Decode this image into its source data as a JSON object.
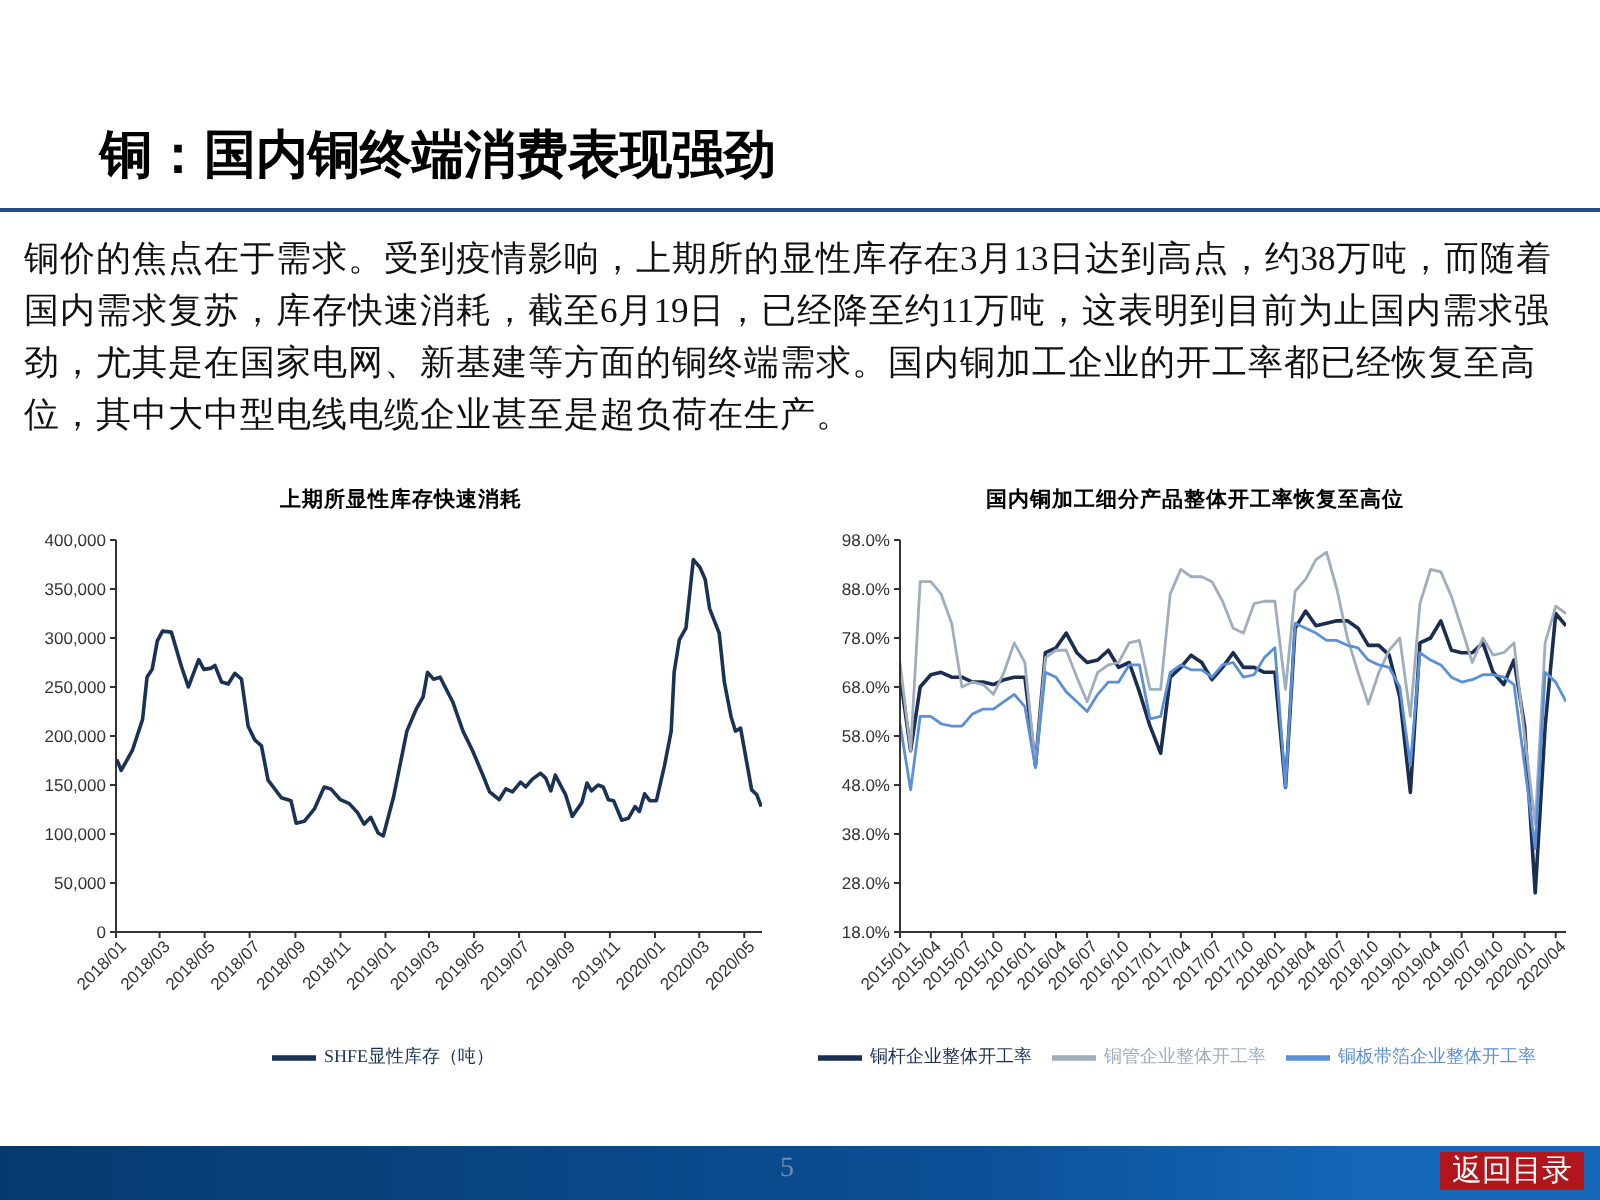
{
  "chart_data": [
    {
      "type": "other",
      "title": "铜：国内铜终端消费表现强劲",
      "annotations": [
        "铜价的焦点在于需求。受到疫情影响，上期所的显性库存在3月13日达到高点，约38万吨，而随着国内需求复苏，库存快速消耗，截至6月19日，已经降至约11万吨，这表明到目前为止国内需求强劲，尤其是在国家电网、新基建等方面的铜终端需求。国内铜加工企业的开工率都已经恢复至高位，其中大中型电线电缆企业甚至是超负荷在生产。",
        "5",
        "返回目录"
      ]
    },
    {
      "type": "line",
      "title": "上期所显性库存快速消耗",
      "legend": "bottom",
      "xlim": [
        "2018-01-01",
        "2020-05-25"
      ],
      "xticks": [
        {
          "value": "2018-01",
          "label": "2018/01"
        },
        {
          "value": "2018-03",
          "label": "2018/03"
        },
        {
          "value": "2018-05",
          "label": "2018/05"
        },
        {
          "value": "2018-07",
          "label": "2018/07"
        },
        {
          "value": "2018-09",
          "label": "2018/09"
        },
        {
          "value": "2018-11",
          "label": "2018/11"
        },
        {
          "value": "2019-01",
          "label": "2019/01"
        },
        {
          "value": "2019-03",
          "label": "2019/03"
        },
        {
          "value": "2019-05",
          "label": "2019/05"
        },
        {
          "value": "2019-07",
          "label": "2019/07"
        },
        {
          "value": "2019-09",
          "label": "2019/09"
        },
        {
          "value": "2019-11",
          "label": "2019/11"
        },
        {
          "value": "2020-01",
          "label": "2020/01"
        },
        {
          "value": "2020-03",
          "label": "2020/03"
        },
        {
          "value": "2020-05",
          "label": "2020/05"
        }
      ],
      "ylim": [
        0,
        400000
      ],
      "yticks": [
        0,
        {
          "value": 50000,
          "label": "50,000"
        },
        {
          "value": 100000,
          "label": "100,000"
        },
        {
          "value": 150000,
          "label": "150,000"
        },
        {
          "value": 200000,
          "label": "200,000"
        },
        {
          "value": 250000,
          "label": "250,000"
        },
        {
          "value": 300000,
          "label": "300,000"
        },
        {
          "value": 350000,
          "label": "350,000"
        },
        {
          "value": 400000,
          "label": "400,000"
        }
      ],
      "series": [
        {
          "name": "SHFE显性库存（吨）",
          "color": "#1a3355",
          "x": [
            "2018-01-02",
            "2018-01-08",
            "2018-01-23",
            "2018-02-06",
            "2018-02-12",
            "2018-02-19",
            "2018-02-26",
            "2018-03-05",
            "2018-03-17",
            "2018-03-31",
            "2018-04-09",
            "2018-04-23",
            "2018-04-30",
            "2018-05-09",
            "2018-05-15",
            "2018-05-24",
            "2018-06-02",
            "2018-06-11",
            "2018-06-20",
            "2018-06-29",
            "2018-07-08",
            "2018-07-17",
            "2018-07-26",
            "2018-08-13",
            "2018-08-26",
            "2018-09-02",
            "2018-09-13",
            "2018-09-27",
            "2018-10-10",
            "2018-10-19",
            "2018-11-01",
            "2018-11-13",
            "2018-11-24",
            "2018-12-03",
            "2018-12-12",
            "2018-12-22",
            "2018-12-29",
            "2019-01-12",
            "2019-01-30",
            "2019-02-12",
            "2019-02-21",
            "2019-02-27",
            "2019-03-07",
            "2019-03-16",
            "2019-04-02",
            "2019-04-16",
            "2019-04-29",
            "2019-05-13",
            "2019-05-22",
            "2019-06-04",
            "2019-06-13",
            "2019-06-22",
            "2019-07-03",
            "2019-07-10",
            "2019-07-19",
            "2019-07-30",
            "2019-08-06",
            "2019-08-13",
            "2019-08-19",
            "2019-09-02",
            "2019-09-11",
            "2019-09-24",
            "2019-10-01",
            "2019-10-07",
            "2019-10-16",
            "2019-10-23",
            "2019-10-30",
            "2019-11-06",
            "2019-11-17",
            "2019-11-26",
            "2019-12-05",
            "2019-12-11",
            "2019-12-18",
            "2019-12-25",
            "2020-01-03",
            "2020-01-14",
            "2020-01-23",
            "2020-01-27",
            "2020-02-03",
            "2020-02-12",
            "2020-02-22",
            "2020-03-02",
            "2020-03-09",
            "2020-03-15",
            "2020-03-28",
            "2020-04-04",
            "2020-04-13",
            "2020-04-19",
            "2020-04-26",
            "2020-05-11",
            "2020-05-18",
            "2020-05-24"
          ],
          "values": [
            176000,
            165000,
            185000,
            217000,
            260000,
            268000,
            297000,
            307000,
            306000,
            270000,
            250000,
            278000,
            268000,
            269000,
            272000,
            255000,
            253000,
            264000,
            258000,
            210000,
            196000,
            190000,
            155000,
            137000,
            134000,
            111000,
            113000,
            126000,
            148000,
            146000,
            135000,
            131000,
            122000,
            110000,
            117000,
            101000,
            98000,
            138000,
            205000,
            228000,
            240000,
            265000,
            258000,
            260000,
            235000,
            205000,
            185000,
            160000,
            143000,
            135000,
            146000,
            143000,
            153000,
            148000,
            156000,
            162000,
            157000,
            144000,
            160000,
            140000,
            118000,
            132000,
            152000,
            144000,
            150000,
            148000,
            135000,
            134000,
            114000,
            116000,
            128000,
            123000,
            141000,
            134000,
            134000,
            170000,
            205000,
            265000,
            298000,
            310000,
            380000,
            372000,
            360000,
            330000,
            305000,
            255000,
            220000,
            205000,
            208000,
            145000,
            140000,
            128000
          ]
        }
      ]
    },
    {
      "type": "line",
      "title": "国内铜加工细分产品整体开工率恢复至高位",
      "legend": "bottom",
      "x": [
        "2015-01",
        "2015-02",
        "2015-03",
        "2015-04",
        "2015-05",
        "2015-06",
        "2015-07",
        "2015-08",
        "2015-09",
        "2015-10",
        "2015-11",
        "2015-12",
        "2016-01",
        "2016-02",
        "2016-03",
        "2016-04",
        "2016-05",
        "2016-06",
        "2016-07",
        "2016-08",
        "2016-09",
        "2016-10",
        "2016-11",
        "2016-12",
        "2017-01",
        "2017-02",
        "2017-03",
        "2017-04",
        "2017-05",
        "2017-06",
        "2017-07",
        "2017-08",
        "2017-09",
        "2017-10",
        "2017-11",
        "2017-12",
        "2018-01",
        "2018-02",
        "2018-03",
        "2018-04",
        "2018-05",
        "2018-06",
        "2018-07",
        "2018-08",
        "2018-09",
        "2018-10",
        "2018-11",
        "2018-12",
        "2019-01",
        "2019-02",
        "2019-03",
        "2019-04",
        "2019-05",
        "2019-06",
        "2019-07",
        "2019-08",
        "2019-09",
        "2019-10",
        "2019-11",
        "2019-12",
        "2020-01",
        "2020-02",
        "2020-03",
        "2020-04",
        "2020-05"
      ],
      "xlim": [
        "2015-01",
        "2020-05"
      ],
      "xticks": [
        {
          "value": "2015-01",
          "label": "2015/01"
        },
        {
          "value": "2015-04",
          "label": "2015/04"
        },
        {
          "value": "2015-07",
          "label": "2015/07"
        },
        {
          "value": "2015-10",
          "label": "2015/10"
        },
        {
          "value": "2016-01",
          "label": "2016/01"
        },
        {
          "value": "2016-04",
          "label": "2016/04"
        },
        {
          "value": "2016-07",
          "label": "2016/07"
        },
        {
          "value": "2016-10",
          "label": "2016/10"
        },
        {
          "value": "2017-01",
          "label": "2017/01"
        },
        {
          "value": "2017-04",
          "label": "2017/04"
        },
        {
          "value": "2017-07",
          "label": "2017/07"
        },
        {
          "value": "2017-10",
          "label": "2017/10"
        },
        {
          "value": "2018-01",
          "label": "2018/01"
        },
        {
          "value": "2018-04",
          "label": "2018/04"
        },
        {
          "value": "2018-07",
          "label": "2018/07"
        },
        {
          "value": "2018-10",
          "label": "2018/10"
        },
        {
          "value": "2019-01",
          "label": "2019/01"
        },
        {
          "value": "2019-04",
          "label": "2019/04"
        },
        {
          "value": "2019-07",
          "label": "2019/07"
        },
        {
          "value": "2019-10",
          "label": "2019/10"
        },
        {
          "value": "2020-01",
          "label": "2020/01"
        },
        {
          "value": "2020-04",
          "label": "2020/04"
        }
      ],
      "ylim": [
        18,
        98
      ],
      "yticks": [
        {
          "value": 18,
          "label": "18.0%"
        },
        {
          "value": 28,
          "label": "28.0%"
        },
        {
          "value": 38,
          "label": "38.0%"
        },
        {
          "value": 48,
          "label": "48.0%"
        },
        {
          "value": 58,
          "label": "58.0%"
        },
        {
          "value": 68,
          "label": "68.0%"
        },
        {
          "value": 78,
          "label": "78.0%"
        },
        {
          "value": 88,
          "label": "88.0%"
        },
        {
          "value": 98,
          "label": "98.0%"
        }
      ],
      "series": [
        {
          "name": "铜杆企业整体开工率",
          "color": "#1a2e52",
          "values": [
            70.5,
            55,
            68,
            70.5,
            71,
            70,
            70,
            69,
            69,
            68.5,
            69.5,
            70,
            70,
            52,
            75,
            76,
            79,
            75,
            73,
            73.5,
            75.5,
            72,
            73,
            67,
            60,
            54.5,
            70,
            72,
            74.5,
            73,
            69.5,
            72,
            75,
            72,
            72,
            71,
            71,
            47.5,
            80,
            83.5,
            80.5,
            81,
            81.5,
            81.5,
            80,
            76.5,
            76.5,
            74.5,
            66,
            46.5,
            77,
            78,
            81.5,
            75.5,
            75,
            75,
            77,
            71,
            68.5,
            73.5,
            60,
            26,
            60,
            83,
            80.5
          ]
        },
        {
          "name": "铜管企业整体开工率",
          "color": "#9fadbd",
          "values": [
            73,
            55,
            89.5,
            89.5,
            87,
            81,
            68,
            69,
            68.5,
            66.5,
            71,
            77,
            73,
            52,
            74,
            75.5,
            75.5,
            70,
            65,
            71,
            72.5,
            73,
            77,
            77.5,
            67.5,
            67.5,
            87,
            92,
            90.5,
            90.5,
            89.5,
            85.5,
            80,
            79,
            85,
            85.5,
            85.5,
            67.5,
            87.5,
            90,
            94,
            95.5,
            88,
            78,
            71,
            64.5,
            71,
            75.5,
            78,
            62,
            85,
            92,
            91.5,
            86.5,
            80,
            73,
            78,
            74.5,
            75,
            77,
            58,
            40,
            77,
            84.5,
            83
          ]
        },
        {
          "name": "铜板带箔企业整体开工率",
          "color": "#5b8fd6",
          "values": [
            60.5,
            47,
            62,
            62,
            60.5,
            60,
            60,
            62.5,
            63.5,
            63.5,
            65,
            66.5,
            64,
            51.5,
            71,
            70,
            67,
            65,
            63,
            66.5,
            69,
            69,
            72.5,
            72.5,
            61.5,
            62,
            71,
            72.5,
            71.5,
            71.5,
            70,
            72.5,
            73,
            70,
            70.5,
            74,
            76,
            47.5,
            81,
            80,
            79,
            77.5,
            77.5,
            76.5,
            76,
            73.5,
            72.5,
            72,
            68,
            52,
            75,
            73.5,
            72.5,
            70,
            69,
            69.5,
            70.5,
            70.5,
            70,
            68.5,
            52,
            35,
            71,
            69,
            65
          ]
        }
      ]
    }
  ]
}
